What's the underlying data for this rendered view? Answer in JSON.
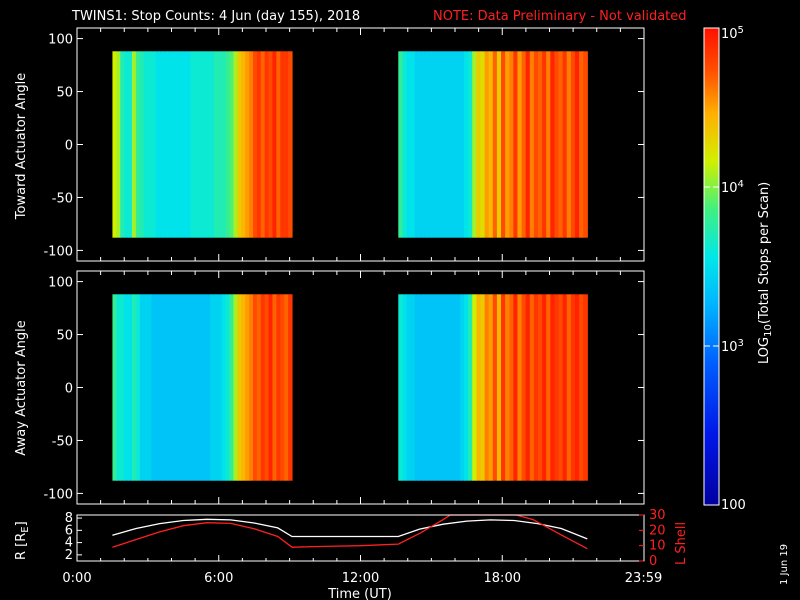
{
  "title": {
    "main": "TWINS1: Stop Counts:  4 Jun (day 155), 2018",
    "note": "NOTE: Data Preliminary - Not validated",
    "note_color": "#ff2020"
  },
  "side_stamp": "1 Jun 19",
  "chart_data": [
    {
      "type": "heatmap",
      "name": "toward",
      "ylabel": "Toward Actuator Angle",
      "ylim": [
        -110,
        110
      ],
      "yticks": [
        "100",
        "50",
        "0",
        "-50",
        "-100"
      ],
      "ytick_values": [
        100,
        50,
        0,
        -50,
        -100
      ],
      "data_range_y": [
        -88,
        88
      ],
      "x_unit": "hours UT",
      "xlim": [
        0,
        24
      ],
      "segments": [
        {
          "start_hour": 1.5,
          "end_hour": 9.1,
          "column_log10": [
            4.0,
            3.9,
            3.5,
            3.4,
            3.4,
            3.9,
            3.6,
            3.5,
            3.4,
            3.4,
            3.4,
            3.3,
            3.3,
            3.3,
            3.3,
            3.3,
            3.3,
            3.3,
            3.3,
            3.3,
            3.4,
            3.4,
            3.4,
            3.4,
            3.4,
            3.4,
            3.5,
            3.5,
            3.5,
            3.6,
            3.7,
            3.9,
            4.2,
            4.3,
            4.4,
            4.5,
            4.7,
            4.8,
            4.6,
            4.8,
            4.7,
            4.9,
            4.6,
            4.8,
            4.8,
            4.7
          ]
        },
        {
          "start_hour": 13.6,
          "end_hour": 21.6,
          "column_log10": [
            3.6,
            3.4,
            3.3,
            3.3,
            3.2,
            3.2,
            3.2,
            3.2,
            3.2,
            3.2,
            3.2,
            3.2,
            3.2,
            3.2,
            3.2,
            3.2,
            3.3,
            3.4,
            3.9,
            4.2,
            4.1,
            4.4,
            4.3,
            4.6,
            4.2,
            4.7,
            4.4,
            4.5,
            4.8,
            4.4,
            4.6,
            4.9,
            4.5,
            4.7,
            4.6,
            4.8,
            4.5,
            4.9,
            4.7,
            4.6,
            4.8,
            4.5,
            4.7,
            4.9,
            4.6,
            4.7
          ]
        }
      ]
    },
    {
      "type": "heatmap",
      "name": "away",
      "ylabel": "Away Actuator Angle",
      "ylim": [
        -110,
        110
      ],
      "yticks": [
        "100",
        "50",
        "0",
        "-50",
        "-100"
      ],
      "ytick_values": [
        100,
        50,
        0,
        -50,
        -100
      ],
      "data_range_y": [
        -88,
        88
      ],
      "x_unit": "hours UT",
      "xlim": [
        0,
        24
      ],
      "segments": [
        {
          "start_hour": 1.5,
          "end_hour": 9.1,
          "column_log10": [
            3.6,
            3.4,
            3.4,
            3.3,
            3.3,
            3.5,
            3.4,
            3.2,
            3.2,
            3.2,
            3.1,
            3.1,
            3.1,
            3.1,
            3.1,
            3.1,
            3.1,
            3.1,
            3.1,
            3.1,
            3.1,
            3.1,
            3.1,
            3.1,
            3.1,
            3.2,
            3.2,
            3.2,
            3.3,
            3.4,
            3.6,
            3.9,
            4.2,
            4.3,
            4.4,
            4.5,
            4.7,
            4.6,
            4.8,
            4.7,
            4.9,
            4.6,
            4.8,
            4.7,
            4.6,
            4.8
          ]
        },
        {
          "start_hour": 13.6,
          "end_hour": 21.6,
          "column_log10": [
            3.4,
            3.3,
            3.2,
            3.2,
            3.1,
            3.1,
            3.1,
            3.1,
            3.1,
            3.1,
            3.1,
            3.1,
            3.1,
            3.1,
            3.1,
            3.2,
            3.3,
            3.5,
            4.0,
            4.3,
            4.2,
            4.5,
            4.4,
            4.7,
            4.3,
            4.8,
            4.5,
            4.6,
            4.9,
            4.5,
            4.7,
            4.9,
            4.6,
            4.8,
            4.7,
            4.9,
            4.6,
            4.9,
            4.8,
            4.7,
            4.9,
            4.6,
            4.8,
            4.9,
            4.7,
            4.8
          ]
        }
      ]
    },
    {
      "type": "line",
      "name": "orbit",
      "ylabel": "R [R",
      "ylabel_sub": "E",
      "ylabel_close": "]",
      "ylim": [
        1,
        8.5
      ],
      "yticks": [
        "8",
        "6",
        "4",
        "2"
      ],
      "ytick_values": [
        8,
        6,
        4,
        2
      ],
      "y2label": "L Shell",
      "y2lim": [
        0,
        30
      ],
      "y2ticks": [
        "30",
        "20",
        "10",
        "0"
      ],
      "y2tick_values": [
        30,
        20,
        10,
        0
      ],
      "y2color": "#ff2020",
      "xlabel": "Time (UT)",
      "xticks": [
        "0:00",
        "6:00",
        "12:00",
        "18:00",
        "23:59"
      ],
      "xtick_values": [
        0,
        6,
        12,
        18,
        23.98
      ],
      "series": [
        {
          "axis": "left",
          "color": "#ffffff",
          "x": [
            1.5,
            2.5,
            3.5,
            4.5,
            5.5,
            6.5,
            7.5,
            8.5,
            9.1,
            10.5,
            12,
            13.6,
            14.5,
            15.5,
            16.5,
            17.5,
            18.5,
            19.5,
            20.5,
            21.6
          ],
          "y": [
            5.2,
            6.3,
            7.1,
            7.6,
            7.8,
            7.7,
            7.2,
            6.4,
            5.0,
            5.0,
            5.0,
            5.0,
            6.2,
            7.0,
            7.5,
            7.7,
            7.6,
            7.1,
            6.3,
            4.6
          ]
        },
        {
          "axis": "right",
          "color": "#ff2020",
          "x": [
            1.5,
            2.5,
            3.5,
            4.5,
            5.5,
            6.5,
            7.5,
            8.5,
            9.1,
            10.5,
            12,
            13.6,
            14.5,
            15.5,
            15.8,
            18.6,
            19.3,
            20.5,
            21.6
          ],
          "y": [
            9,
            14,
            19,
            23,
            25,
            24.5,
            21,
            16,
            9,
            9.5,
            10,
            11,
            18,
            27,
            31,
            31,
            27,
            17,
            8
          ]
        }
      ]
    }
  ],
  "colorbar": {
    "label_prefix": "LOG",
    "label_sub": "10",
    "label_suffix": "(Total Stops per Scan)",
    "range_log10": [
      2,
      5
    ],
    "tick_labels": [
      {
        "prefix": "10",
        "sup": "5",
        "value": 5
      },
      {
        "prefix": "10",
        "sup": "4",
        "value": 4
      },
      {
        "prefix": "10",
        "sup": "3",
        "value": 3
      },
      {
        "prefix": "100",
        "sup": "",
        "value": 2
      }
    ],
    "colors": [
      "#0000a0",
      "#0018e8",
      "#0060ff",
      "#00b4ff",
      "#00e8e8",
      "#40f080",
      "#d0f000",
      "#ffb000",
      "#ff5000",
      "#ff1000"
    ]
  }
}
